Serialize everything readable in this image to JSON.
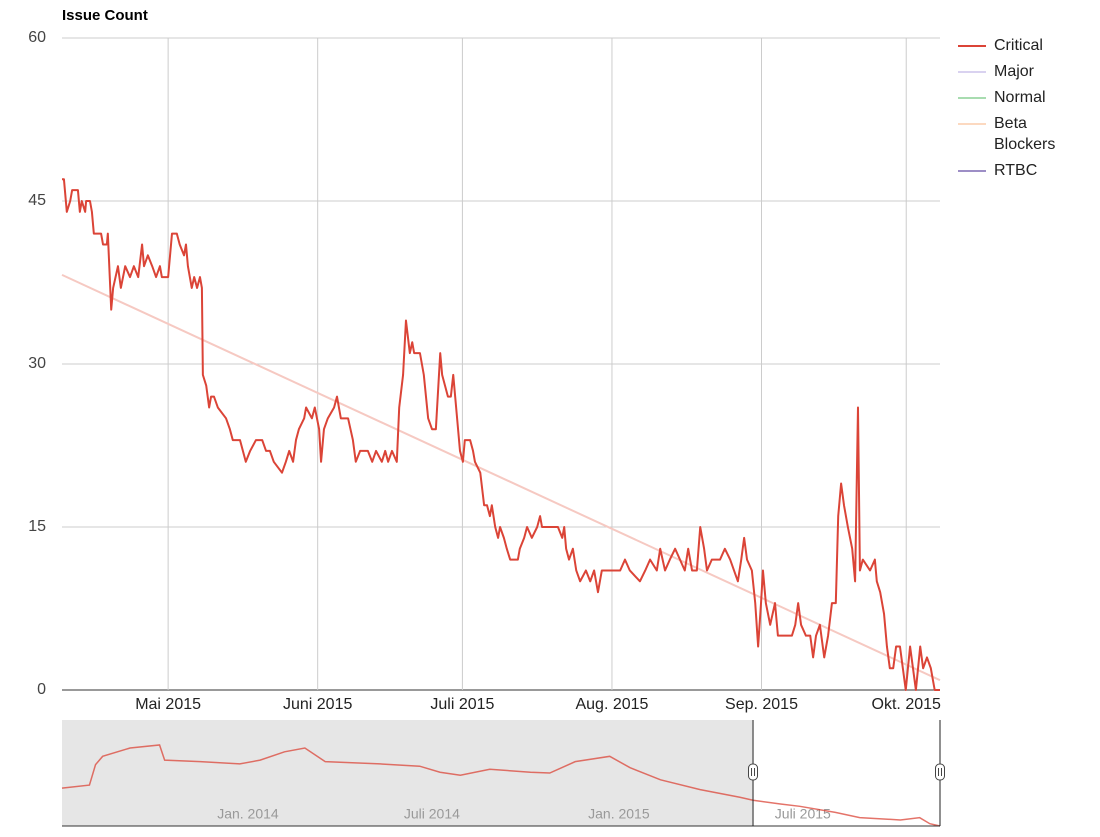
{
  "chart_data": {
    "type": "line",
    "title": "Issue Count",
    "xlim": [
      99,
      281
    ],
    "ylim": [
      0,
      60
    ],
    "yticks": [
      0,
      15,
      30,
      45,
      60
    ],
    "xticks": [
      {
        "value": 121,
        "label": "Mai 2015"
      },
      {
        "value": 152,
        "label": "Juni 2015"
      },
      {
        "value": 182,
        "label": "Juli 2015"
      },
      {
        "value": 213,
        "label": "Aug. 2015"
      },
      {
        "value": 244,
        "label": "Sep. 2015"
      },
      {
        "value": 274,
        "label": "Okt. 2015"
      }
    ],
    "grid": true,
    "legend": "right",
    "series": [
      {
        "name": "Critical",
        "color": "#db4437",
        "x": [
          99,
          99.4,
          100,
          100.7,
          101.1,
          102.3,
          102.7,
          103.1,
          103.8,
          104,
          104.8,
          105.2,
          105.6,
          107.1,
          107.5,
          108.3,
          108.5,
          109.2,
          109.6,
          110.6,
          111.2,
          112.1,
          113.1,
          113.9,
          114.8,
          115.6,
          116,
          116.8,
          117.7,
          118.5,
          119.3,
          119.7,
          121,
          121.4,
          121.8,
          122.8,
          123.4,
          124.3,
          124.7,
          125.1,
          125.9,
          126.4,
          127,
          127.6,
          128,
          128.2,
          128.9,
          129.5,
          129.9,
          130.5,
          131.3,
          133,
          133.8,
          134.4,
          135.9,
          137.1,
          138,
          139.2,
          140.5,
          141.3,
          142.1,
          142.9,
          144.6,
          145.4,
          146.1,
          146.9,
          147.5,
          148.1,
          149.2,
          149.6,
          150.8,
          151.4,
          152.3,
          152.7,
          153.3,
          154.1,
          155.4,
          156,
          156.8,
          158.3,
          159.3,
          159.9,
          160.8,
          162.4,
          163.3,
          164.1,
          165.3,
          166,
          166.6,
          167.4,
          168.4,
          168.9,
          169.7,
          170.3,
          171.1,
          171.6,
          172,
          173.2,
          174,
          174.9,
          175.7,
          176.5,
          177.4,
          177.8,
          178.4,
          179,
          179.6,
          180.1,
          180.5,
          180.9,
          181.5,
          182.1,
          182.5,
          183.6,
          184.2,
          184.6,
          185.7,
          186.5,
          187.1,
          187.7,
          188.1,
          188.8,
          189.4,
          189.8,
          190.6,
          191.2,
          191.9,
          193.5,
          193.9,
          194.8,
          195.4,
          196.4,
          197.5,
          198.1,
          198.5,
          199.3,
          200.6,
          201.8,
          202.7,
          203.1,
          203.5,
          204.1,
          204.9,
          205.6,
          206.4,
          207.6,
          208.5,
          209.3,
          210.1,
          210.9,
          212.6,
          214.7,
          215.7,
          216.7,
          218.8,
          219.9,
          220.9,
          222.3,
          223,
          224,
          225,
          226.1,
          227.1,
          228.1,
          228.8,
          229.6,
          230.6,
          231.3,
          232.1,
          232.7,
          233.7,
          235.4,
          236.4,
          237.5,
          238.3,
          239.1,
          239.8,
          240.4,
          241,
          242,
          242.7,
          243.3,
          243.9,
          244.3,
          244.9,
          245.8,
          246.8,
          247.4,
          248.9,
          250.3,
          251,
          251.6,
          252.2,
          253.2,
          254.1,
          254.7,
          255.3,
          256.1,
          257,
          257.8,
          258.6,
          259.4,
          259.9,
          260.5,
          261.1,
          261.9,
          262.8,
          263.4,
          264,
          264.4,
          265,
          266.5,
          267.5,
          267.9,
          268.6,
          269.4,
          270,
          270.6,
          271.3,
          271.9,
          272.7,
          273.3,
          273.9,
          274.8,
          275.4,
          276,
          276.9,
          277.5,
          278.3,
          279.1,
          279.9,
          281
        ],
        "values": [
          47,
          47,
          44,
          45,
          46,
          46,
          44,
          45,
          44,
          45,
          45,
          44,
          42,
          42,
          41,
          41,
          42,
          35,
          37,
          39,
          37,
          39,
          38,
          39,
          38,
          41,
          39,
          40,
          39,
          38,
          39,
          38,
          38,
          40,
          42,
          42,
          41,
          40,
          41,
          39,
          37,
          38,
          37,
          38,
          37,
          29,
          28,
          26,
          27,
          27,
          26,
          25,
          24,
          23,
          23,
          21,
          22,
          23,
          23,
          22,
          22,
          21,
          20,
          21,
          22,
          21,
          23,
          24,
          25,
          26,
          25,
          26,
          24,
          21,
          24,
          25,
          26,
          27,
          25,
          25,
          23,
          21,
          22,
          22,
          21,
          22,
          21,
          22,
          21,
          22,
          21,
          26,
          29,
          34,
          31,
          32,
          31,
          31,
          29,
          25,
          24,
          24,
          31,
          29,
          28,
          27,
          27,
          29,
          27,
          25,
          22,
          21,
          23,
          23,
          22,
          21,
          20,
          17,
          17,
          16,
          17,
          15,
          14,
          15,
          14,
          13,
          12,
          12,
          13,
          14,
          15,
          14,
          15,
          16,
          15,
          15,
          15,
          15,
          14,
          15,
          13,
          12,
          13,
          11,
          10,
          11,
          10,
          11,
          9,
          11,
          11,
          11,
          12,
          11,
          10,
          11,
          12,
          11,
          13,
          11,
          12,
          13,
          12,
          11,
          13,
          11,
          11,
          15,
          13,
          11,
          12,
          12,
          13,
          12,
          11,
          10,
          12,
          14,
          12,
          11,
          8,
          4,
          8,
          11,
          8,
          6,
          8,
          5,
          5,
          5,
          6,
          8,
          6,
          5,
          5,
          3,
          5,
          6,
          3,
          5,
          8,
          8,
          16,
          19,
          17,
          15,
          13,
          10,
          26,
          11,
          12,
          11,
          12,
          10,
          9,
          7,
          4,
          2,
          2,
          4,
          4,
          2,
          0,
          4,
          2,
          0,
          4,
          2,
          3,
          2,
          0,
          0
        ],
        "trend": {
          "color": "#f6c9c2",
          "x": [
            99,
            281
          ],
          "values": [
            38.2,
            0.9
          ]
        }
      },
      {
        "name": "Major",
        "color": "#d9d2f0"
      },
      {
        "name": "Normal",
        "color": "#a8dcb0"
      },
      {
        "name": "Beta Blockers",
        "color": "#fcd9c0"
      },
      {
        "name": "RTBC",
        "color": "#9d8ec6"
      }
    ],
    "navigator": {
      "color": "#db4437",
      "xlim": [
        -183,
        681
      ],
      "ylim": [
        0,
        140
      ],
      "xticks": [
        {
          "value": 0,
          "label": "Jan. 2014"
        },
        {
          "value": 181,
          "label": "Juli 2014"
        },
        {
          "value": 365,
          "label": "Jan. 2015"
        },
        {
          "value": 546,
          "label": "Juli 2015"
        }
      ],
      "selection": [
        497,
        681
      ],
      "x": [
        -183,
        -156,
        -150,
        -143,
        -116,
        -87,
        -82,
        -47,
        -8,
        12,
        36,
        56,
        76,
        130,
        169,
        189,
        209,
        238,
        278,
        297,
        322,
        356,
        376,
        406,
        445,
        484,
        497,
        524,
        543,
        578,
        602,
        642,
        661,
        671,
        681
      ],
      "values": [
        50,
        54,
        81,
        92,
        103,
        107,
        87,
        85,
        82,
        87,
        98,
        103,
        85,
        82,
        79,
        71,
        67,
        75,
        71,
        70,
        85,
        92,
        77,
        61,
        48,
        38,
        34,
        29,
        26,
        18,
        11,
        8,
        11,
        3,
        0
      ]
    }
  }
}
